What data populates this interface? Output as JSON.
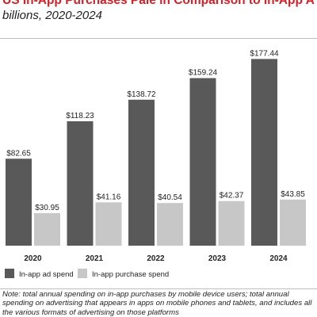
{
  "header": {
    "title": "US In-App Purchases Pale in Comparison to In-App Advertising Spend",
    "subtitle": "billions, 2020-2024"
  },
  "chart_data": {
    "type": "bar",
    "categories": [
      "2020",
      "2021",
      "2022",
      "2023",
      "2024"
    ],
    "series": [
      {
        "name": "In-app ad spend",
        "values": [
          82.65,
          118.23,
          138.72,
          159.24,
          177.44
        ],
        "color": "#595959",
        "labels": [
          "$82.65",
          "$118.23",
          "$138.72",
          "$159.24",
          "$177.44"
        ]
      },
      {
        "name": "In-app purchase spend",
        "values": [
          30.95,
          41.16,
          40.54,
          42.37,
          43.85
        ],
        "color": "#c7c7c7",
        "labels": [
          "$30.95",
          "$41.16",
          "$40.54",
          "$42.37",
          "$43.85"
        ]
      }
    ],
    "ylim": [
      0,
      180
    ],
    "grid": false,
    "legend": "bottom-left"
  },
  "footer": {
    "note": "Note: total annual spending on in-app purchases by mobile device users; total annual spending on advertising that appears in apps on mobile phones and tablets, and includes all the various formats of advertising on those platforms"
  }
}
